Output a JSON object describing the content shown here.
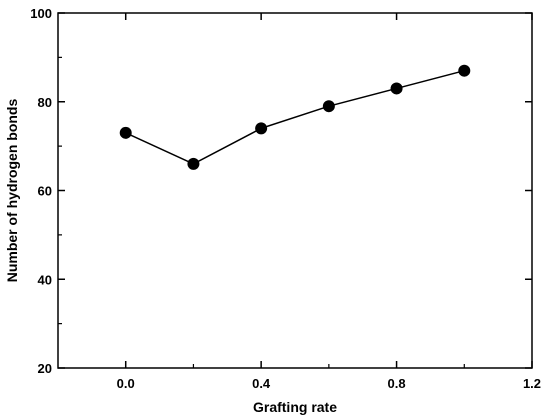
{
  "chart_data": {
    "type": "line",
    "title": "",
    "xlabel": "Grafting rate",
    "ylabel": "Number of hydrogen bonds",
    "xlim": [
      -0.2,
      1.2
    ],
    "ylim": [
      20,
      100
    ],
    "x_ticks": [
      0.0,
      0.4,
      0.8,
      1.2
    ],
    "x_tick_labels": [
      "0.0",
      "0.4",
      "0.8",
      "1.2"
    ],
    "y_ticks": [
      20,
      40,
      60,
      80,
      100
    ],
    "y_tick_labels": [
      "20",
      "40",
      "60",
      "80",
      "100"
    ],
    "grid": false,
    "legend": "none",
    "marker": "circle",
    "line_color": "#000000",
    "marker_color": "#000000",
    "series": [
      {
        "x": [
          0.0,
          0.2,
          0.4,
          0.6,
          0.8,
          1.0
        ],
        "y": [
          73,
          66,
          74,
          79,
          83,
          87
        ]
      }
    ]
  }
}
